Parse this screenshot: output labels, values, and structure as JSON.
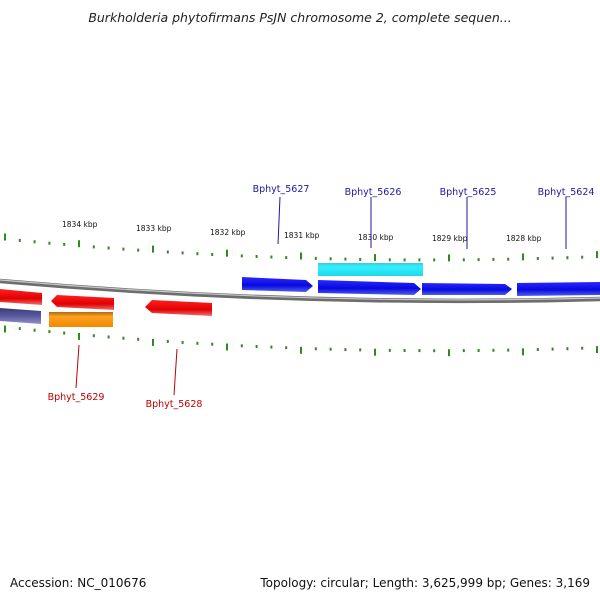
{
  "title": "Burkholderia phytofirmans PsJN chromosome 2, complete sequen...",
  "footer": {
    "accession": "Accession: NC_010676",
    "topology": "Topology: circular; Length: 3,625,999 bp; Genes: 3,169"
  },
  "colors": {
    "backbone": "#8a8a8a",
    "tick": "#2e8b20",
    "forward_gene": "#0a0af0",
    "reverse_gene": "#e80000",
    "label_forward": "#1a1aa0",
    "label_reverse": "#c00000",
    "cyan": "#22e0ec",
    "orange": "#f59a10",
    "slate": "#4a4a8a"
  },
  "scale_labels": [
    "1834 kbp",
    "1833 kbp",
    "1832 kbp",
    "1831 kbp",
    "1830 kbp",
    "1829 kbp",
    "1828 kbp"
  ],
  "gene_labels_top": [
    "Bphyt_5627",
    "Bphyt_5626",
    "Bphyt_5625",
    "Bphyt_5624"
  ],
  "gene_labels_bottom": [
    "Bphyt_5629",
    "Bphyt_5628"
  ]
}
